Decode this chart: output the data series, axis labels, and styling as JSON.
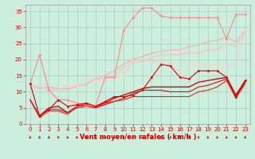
{
  "background_color": "#cceedd",
  "grid_color": "#aacccc",
  "xlabel": "Vent moyen/en rafales ( km/h )",
  "xlabel_color": "#cc0000",
  "xlabel_fontsize": 6.0,
  "tick_color": "#cc0000",
  "tick_fontsize": 5.0,
  "ylim": [
    0,
    37
  ],
  "yticks": [
    0,
    5,
    10,
    15,
    20,
    25,
    30,
    35
  ],
  "xlim": [
    -0.5,
    23.5
  ],
  "xticks": [
    0,
    1,
    2,
    3,
    4,
    5,
    6,
    7,
    8,
    9,
    10,
    11,
    12,
    13,
    14,
    15,
    16,
    17,
    18,
    19,
    20,
    21,
    22,
    23
  ],
  "lines": [
    {
      "x": [
        0,
        1,
        2,
        3,
        4,
        5,
        6,
        7,
        8,
        9,
        10,
        11,
        12,
        13,
        14,
        15,
        16,
        17,
        18,
        19,
        20,
        21,
        22,
        23
      ],
      "y": [
        12.5,
        21.5,
        10.5,
        7.5,
        7.5,
        6.5,
        6.0,
        5.5,
        14.5,
        14.5,
        29.0,
        33.0,
        36.0,
        36.0,
        33.5,
        33.0,
        33.0,
        33.0,
        33.0,
        33.0,
        33.0,
        26.5,
        34.0,
        34.0
      ],
      "color": "#ff8888",
      "lw": 0.8,
      "marker": "D",
      "markersize": 1.5,
      "zorder": 5
    },
    {
      "x": [
        0,
        1,
        2,
        3,
        4,
        5,
        6,
        7,
        8,
        9,
        10,
        11,
        12,
        13,
        14,
        15,
        16,
        17,
        18,
        19,
        20,
        21,
        22,
        23
      ],
      "y": [
        12.0,
        11.0,
        11.5,
        11.0,
        11.0,
        11.5,
        12.5,
        14.0,
        15.0,
        16.5,
        18.5,
        20.0,
        21.0,
        22.0,
        22.5,
        23.0,
        23.0,
        24.0,
        24.5,
        25.5,
        26.0,
        27.0,
        25.5,
        29.0
      ],
      "color": "#ffaaaa",
      "lw": 0.8,
      "marker": null,
      "markersize": 0,
      "zorder": 2
    },
    {
      "x": [
        0,
        1,
        2,
        3,
        4,
        5,
        6,
        7,
        8,
        9,
        10,
        11,
        12,
        13,
        14,
        15,
        16,
        17,
        18,
        19,
        20,
        21,
        22,
        23
      ],
      "y": [
        12.0,
        11.5,
        11.0,
        10.5,
        10.5,
        12.0,
        12.0,
        14.0,
        14.0,
        15.0,
        17.5,
        19.0,
        19.5,
        20.5,
        21.5,
        21.5,
        21.5,
        22.0,
        22.0,
        23.0,
        23.0,
        25.0,
        24.0,
        28.5
      ],
      "color": "#ffbbbb",
      "lw": 0.8,
      "marker": null,
      "markersize": 0,
      "zorder": 2
    },
    {
      "x": [
        0,
        1,
        2,
        3,
        4,
        5,
        6,
        7,
        8,
        9,
        10,
        11,
        12,
        13,
        14,
        15,
        16,
        17,
        18,
        19,
        20,
        21,
        22,
        23
      ],
      "y": [
        12.0,
        11.5,
        10.5,
        10.5,
        12.0,
        11.5,
        14.5,
        13.5,
        14.0,
        14.5,
        15.0,
        19.5,
        19.5,
        19.5,
        19.5,
        18.5,
        16.5,
        18.5,
        18.5,
        18.5,
        18.0,
        18.0,
        18.5,
        29.0
      ],
      "color": "#ffcccc",
      "lw": 0.8,
      "marker": "D",
      "markersize": 1.5,
      "zorder": 4
    },
    {
      "x": [
        0,
        1,
        2,
        3,
        4,
        5,
        6,
        7,
        8,
        9,
        10,
        11,
        12,
        13,
        14,
        15,
        16,
        17,
        18,
        19,
        20,
        21,
        22,
        23
      ],
      "y": [
        12.5,
        2.5,
        4.5,
        7.5,
        5.5,
        6.0,
        6.5,
        5.5,
        7.0,
        8.5,
        8.5,
        9.0,
        10.5,
        14.5,
        18.5,
        18.0,
        14.5,
        14.0,
        16.5,
        16.5,
        16.5,
        14.5,
        8.5,
        13.5
      ],
      "color": "#dd0000",
      "lw": 0.8,
      "marker": "D",
      "markersize": 1.5,
      "zorder": 6
    },
    {
      "x": [
        0,
        1,
        2,
        3,
        4,
        5,
        6,
        7,
        8,
        9,
        10,
        11,
        12,
        13,
        14,
        15,
        16,
        17,
        18,
        19,
        20,
        21,
        22,
        23
      ],
      "y": [
        7.5,
        2.0,
        4.0,
        4.0,
        3.0,
        5.5,
        6.5,
        5.0,
        6.5,
        7.0,
        7.5,
        8.5,
        8.5,
        8.5,
        8.5,
        8.5,
        8.5,
        8.5,
        10.0,
        10.5,
        11.5,
        13.5,
        8.0,
        12.5
      ],
      "color": "#ee2222",
      "lw": 0.8,
      "marker": null,
      "markersize": 0,
      "zorder": 4
    },
    {
      "x": [
        0,
        1,
        2,
        3,
        4,
        5,
        6,
        7,
        8,
        9,
        10,
        11,
        12,
        13,
        14,
        15,
        16,
        17,
        18,
        19,
        20,
        21,
        22,
        23
      ],
      "y": [
        7.5,
        2.5,
        4.5,
        4.5,
        3.5,
        5.0,
        5.5,
        5.0,
        6.0,
        7.0,
        8.0,
        9.5,
        10.5,
        10.5,
        10.5,
        10.0,
        10.0,
        10.0,
        11.5,
        12.0,
        13.0,
        14.0,
        8.5,
        13.0
      ],
      "color": "#cc1111",
      "lw": 0.8,
      "marker": null,
      "markersize": 0,
      "zorder": 3
    },
    {
      "x": [
        0,
        1,
        2,
        3,
        4,
        5,
        6,
        7,
        8,
        9,
        10,
        11,
        12,
        13,
        14,
        15,
        16,
        17,
        18,
        19,
        20,
        21,
        22,
        23
      ],
      "y": [
        7.5,
        2.5,
        5.0,
        5.5,
        3.5,
        5.5,
        6.0,
        5.5,
        6.5,
        8.0,
        9.0,
        10.0,
        11.0,
        11.5,
        11.5,
        11.5,
        11.5,
        11.5,
        13.0,
        13.5,
        14.0,
        14.5,
        9.0,
        13.5
      ],
      "color": "#bb1111",
      "lw": 1.0,
      "marker": null,
      "markersize": 0,
      "zorder": 2
    }
  ]
}
